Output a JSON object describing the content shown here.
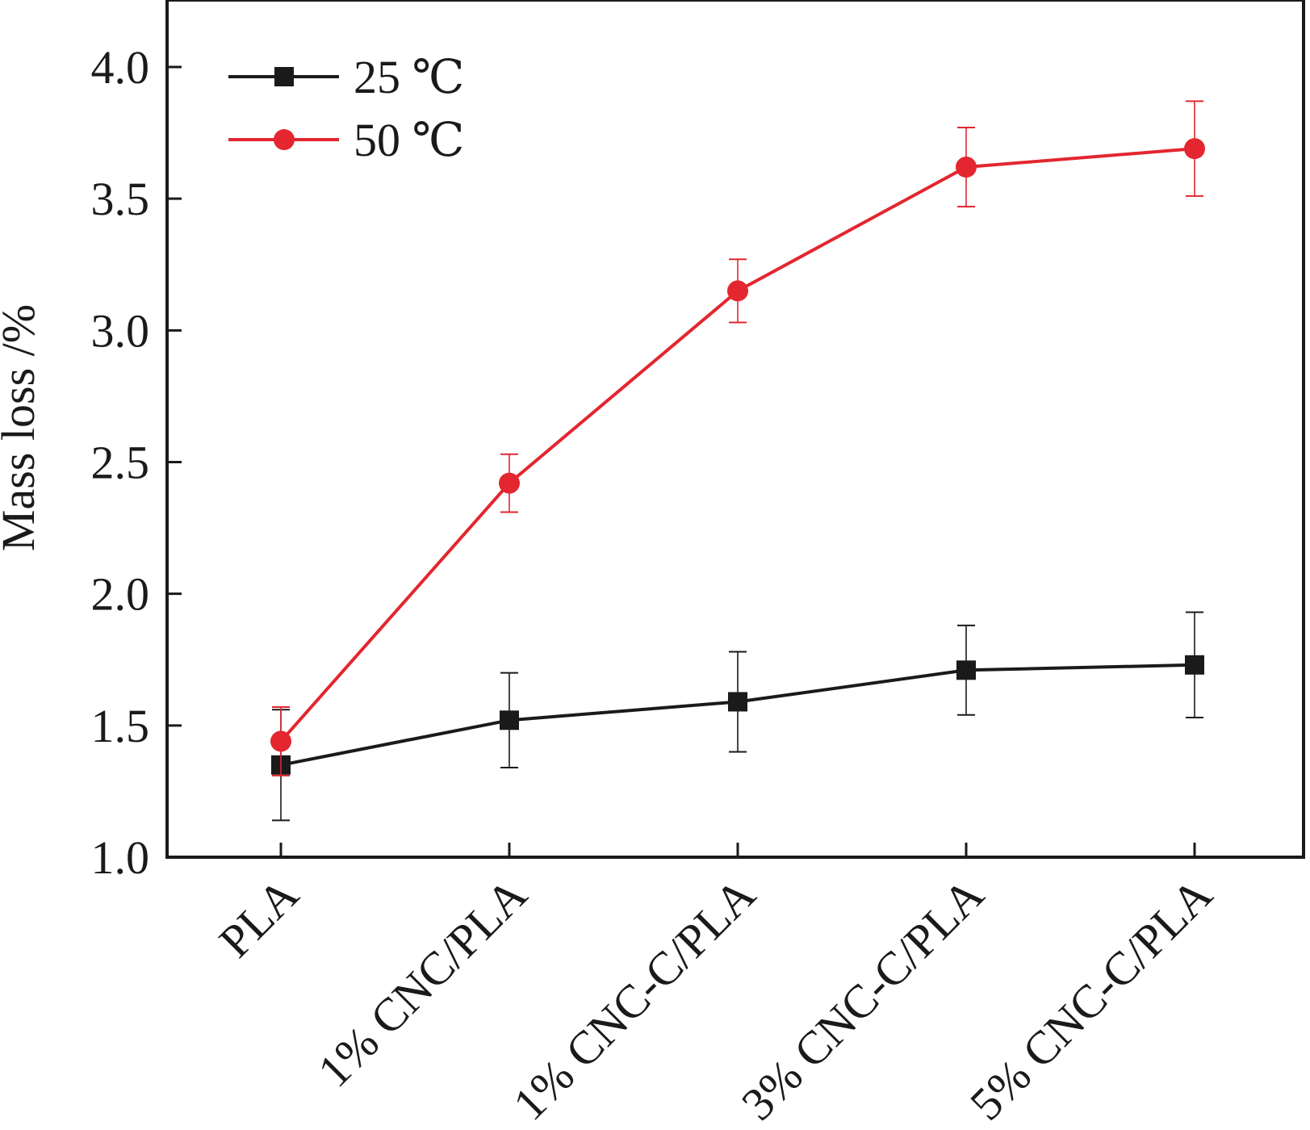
{
  "chart_data": {
    "type": "line",
    "title": "",
    "xlabel": "",
    "ylabel": "Mass loss /%",
    "ylim": [
      1.0,
      4.3
    ],
    "yticks": [
      1.0,
      1.5,
      2.0,
      2.5,
      3.0,
      3.5,
      4.0
    ],
    "ytick_labels": [
      "1.0",
      "1.5",
      "2.0",
      "2.5",
      "3.0",
      "3.5",
      "4.0"
    ],
    "categories": [
      "PLA",
      "1% CNC/PLA",
      "1% CNC-C/PLA",
      "3% CNC-C/PLA",
      "5% CNC-C/PLA"
    ],
    "legend_position": "top-left",
    "grid": false,
    "series": [
      {
        "name": "25 ℃",
        "color": "#1a1a1a",
        "marker": "square",
        "values": [
          1.35,
          1.52,
          1.59,
          1.71,
          1.73
        ],
        "errors": [
          0.21,
          0.18,
          0.19,
          0.17,
          0.2
        ]
      },
      {
        "name": "50 ℃",
        "color": "#e3262f",
        "marker": "circle",
        "values": [
          1.44,
          2.42,
          3.15,
          3.62,
          3.69
        ],
        "errors": [
          0.13,
          0.11,
          0.12,
          0.15,
          0.18
        ]
      }
    ]
  }
}
